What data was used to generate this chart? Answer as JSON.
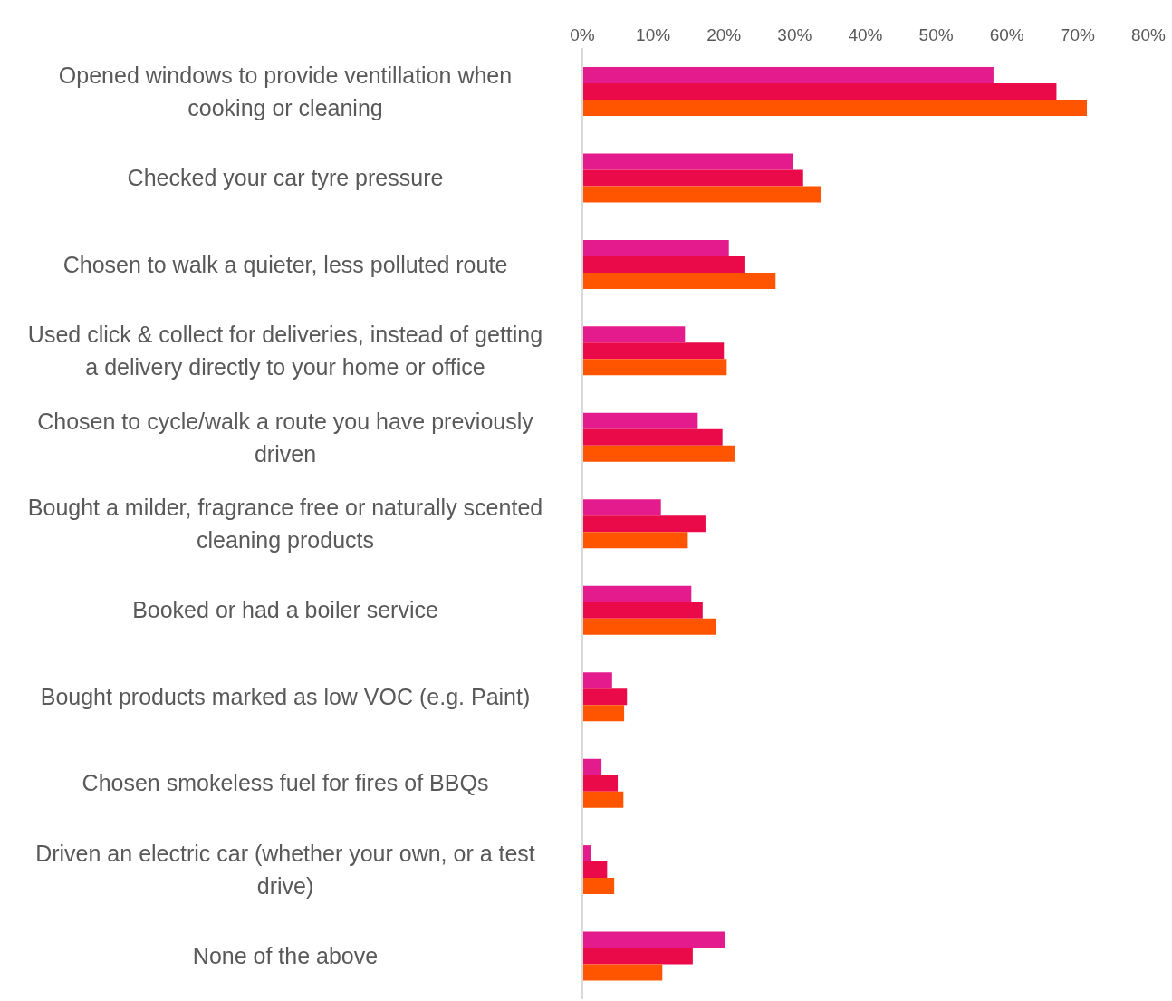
{
  "chart_data": {
    "type": "bar",
    "orientation": "horizontal",
    "categories": [
      "Opened windows to provide ventillation when cooking or cleaning",
      "Checked your car tyre pressure",
      "Chosen to walk a quieter, less polluted route",
      "Used click & collect for deliveries, instead of getting a delivery directly to your home or office",
      "Chosen to cycle/walk a route you have previously driven",
      "Bought a milder, fragrance free or naturally scented cleaning products",
      "Booked or had a boiler service",
      "Bought products marked as low VOC (e.g. Paint)",
      "Chosen smokeless fuel for fires of BBQs",
      "Driven an electric car (whether your own, or a test drive)",
      "None of the above"
    ],
    "series": [
      {
        "color": "#e31b8c",
        "values": [
          58.1,
          29.8,
          20.7,
          14.5,
          16.3,
          11.1,
          15.4,
          4.2,
          2.7,
          1.2,
          20.2
        ]
      },
      {
        "color": "#ea0a4a",
        "values": [
          67.0,
          31.2,
          22.9,
          20.0,
          19.8,
          17.4,
          17.0,
          6.3,
          5.0,
          3.5,
          15.6
        ]
      },
      {
        "color": "#ff5500",
        "values": [
          71.3,
          33.7,
          27.3,
          20.4,
          21.5,
          14.9,
          18.9,
          5.9,
          5.8,
          4.5,
          11.3
        ]
      }
    ],
    "xlim": [
      0,
      80
    ],
    "xticks": [
      {
        "value": 0,
        "label": "0%"
      },
      {
        "value": 10,
        "label": "10%"
      },
      {
        "value": 20,
        "label": "20%"
      },
      {
        "value": 30,
        "label": "30%"
      },
      {
        "value": 40,
        "label": "40%"
      },
      {
        "value": 50,
        "label": "50%"
      },
      {
        "value": 60,
        "label": "60%"
      },
      {
        "value": 70,
        "label": "70%"
      },
      {
        "value": 80,
        "label": "80%"
      }
    ],
    "grid": false,
    "legend": false
  }
}
